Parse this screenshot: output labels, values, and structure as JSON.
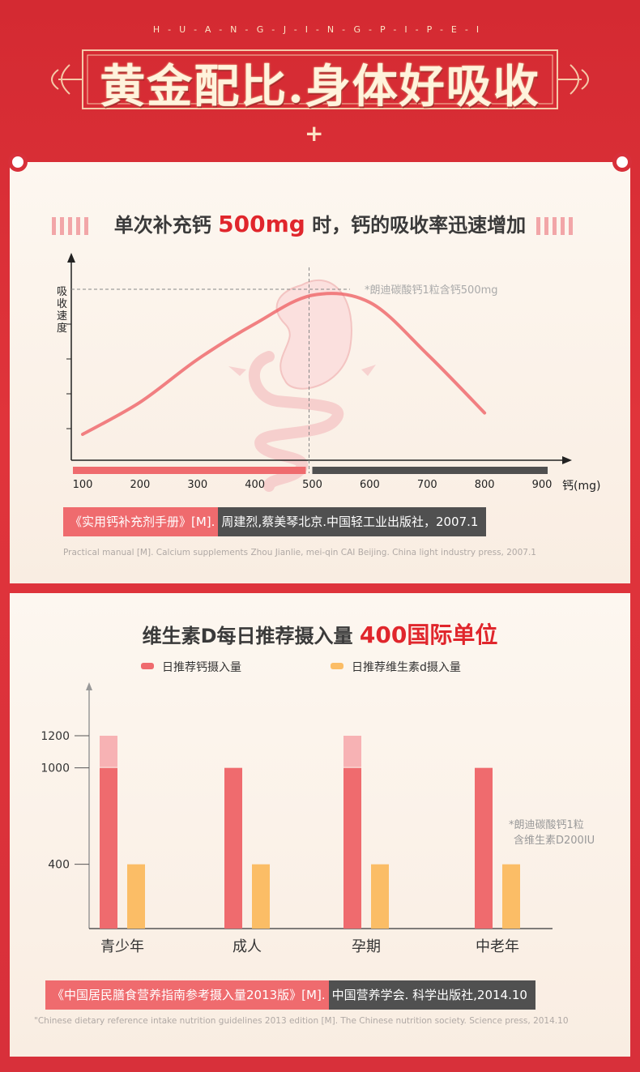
{
  "header": {
    "pinyin": "H-U-A-N-G-J-I-N-G-P-I-P-E-I",
    "title": "黄金配比.身体好吸收",
    "plus": "+"
  },
  "section1": {
    "heading_pre": "单次补充钙 ",
    "heading_hl": "500mg",
    "heading_post": " 时，钙的吸收率迅速增加",
    "note": "*朗迪碳酸钙1粒含钙500mg",
    "source_red": "《实用钙补充剂手册》[M].",
    "source_dark": "周建烈,蔡美琴北京.中国轻工业出版社，2007.1",
    "source_en": "Practical manual [M]. Calcium supplements Zhou Jianlie, mei-qin CAI Beijing. China light industry press, 2007.1"
  },
  "section2": {
    "heading_pre": "维生素D每日推荐摄入量 ",
    "heading_hl": "400国际单位",
    "note_line1": "*朗迪碳酸钙1粒",
    "note_line2": "含维生素D200IU",
    "source_red": "《中国居民膳食营养指南参考摄入量2013版》[M].",
    "source_dark": "中国营养学会. 科学出版社,2014.10",
    "source_en": "\"Chinese dietary reference intake nutrition guidelines 2013 edition [M]. The Chinese nutrition society. Science press, 2014.10"
  },
  "chart_data": [
    {
      "type": "line",
      "ylabel": "吸收速度",
      "xlabel": "钙(mg)",
      "x_ticks": [
        100,
        200,
        300,
        400,
        500,
        600,
        700,
        800,
        900
      ],
      "x": [
        100,
        200,
        300,
        400,
        500,
        600,
        700,
        800
      ],
      "y": [
        10,
        28,
        52,
        72,
        88,
        84,
        55,
        22
      ],
      "peak_x": 500,
      "colors": {
        "curve": "#ef6b6e",
        "bar_left": "#ef6b6e",
        "bar_right": "#505050"
      }
    },
    {
      "type": "bar",
      "categories": [
        "青少年",
        "成人",
        "孕期",
        "中老年"
      ],
      "y_ticks": [
        400,
        1000,
        1200
      ],
      "series": [
        {
          "name": "日推荐钙摄入量",
          "low": [
            1000,
            1000,
            1000,
            1000
          ],
          "high": [
            1200,
            1000,
            1200,
            1000
          ],
          "color": "#ef6b6e",
          "light_color": "#f7b2b4"
        },
        {
          "name": "日推荐维生素d摄入量",
          "values": [
            400,
            400,
            400,
            400
          ],
          "color": "#fbbd66"
        }
      ]
    }
  ]
}
